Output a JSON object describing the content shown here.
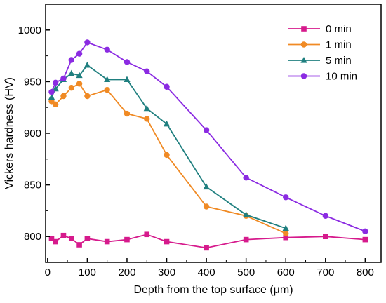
{
  "chart_data": {
    "type": "line",
    "xlabel": "Depth from the top surface (μm)",
    "ylabel": "Vickers hardness (HV)",
    "xlim": [
      -5,
      840
    ],
    "ylim": [
      775,
      1025
    ],
    "xticks": [
      0,
      100,
      200,
      300,
      400,
      500,
      600,
      700,
      800
    ],
    "yticks": [
      800,
      850,
      900,
      950,
      1000
    ],
    "grid": false,
    "legend_position": "top-right",
    "series": [
      {
        "name": "0 min",
        "color": "#d61a8c",
        "marker": "square",
        "x": [
          10,
          20,
          40,
          60,
          80,
          100,
          150,
          200,
          250,
          300,
          400,
          500,
          600,
          700,
          800
        ],
        "y": [
          798,
          795,
          801,
          798,
          792,
          798,
          795,
          797,
          802,
          795,
          789,
          797,
          799,
          800,
          797
        ]
      },
      {
        "name": "1 min",
        "color": "#f08a24",
        "marker": "circle",
        "x": [
          10,
          20,
          40,
          60,
          80,
          100,
          150,
          200,
          250,
          300,
          400,
          500,
          600
        ],
        "y": [
          931,
          928,
          936,
          944,
          948,
          936,
          942,
          919,
          914,
          879,
          829,
          820,
          803
        ]
      },
      {
        "name": "5 min",
        "color": "#1f7f7f",
        "marker": "triangle",
        "x": [
          10,
          20,
          40,
          60,
          80,
          100,
          150,
          200,
          250,
          300,
          400,
          500,
          600
        ],
        "y": [
          935,
          943,
          952,
          958,
          956,
          966,
          952,
          952,
          924,
          909,
          848,
          821,
          808
        ]
      },
      {
        "name": "10 min",
        "color": "#8b2be2",
        "marker": "circle",
        "x": [
          10,
          20,
          40,
          60,
          80,
          100,
          150,
          200,
          250,
          300,
          400,
          500,
          600,
          700,
          800
        ],
        "y": [
          940,
          949,
          953,
          971,
          977,
          988,
          981,
          969,
          960,
          945,
          903,
          857,
          838,
          820,
          805
        ]
      }
    ]
  }
}
